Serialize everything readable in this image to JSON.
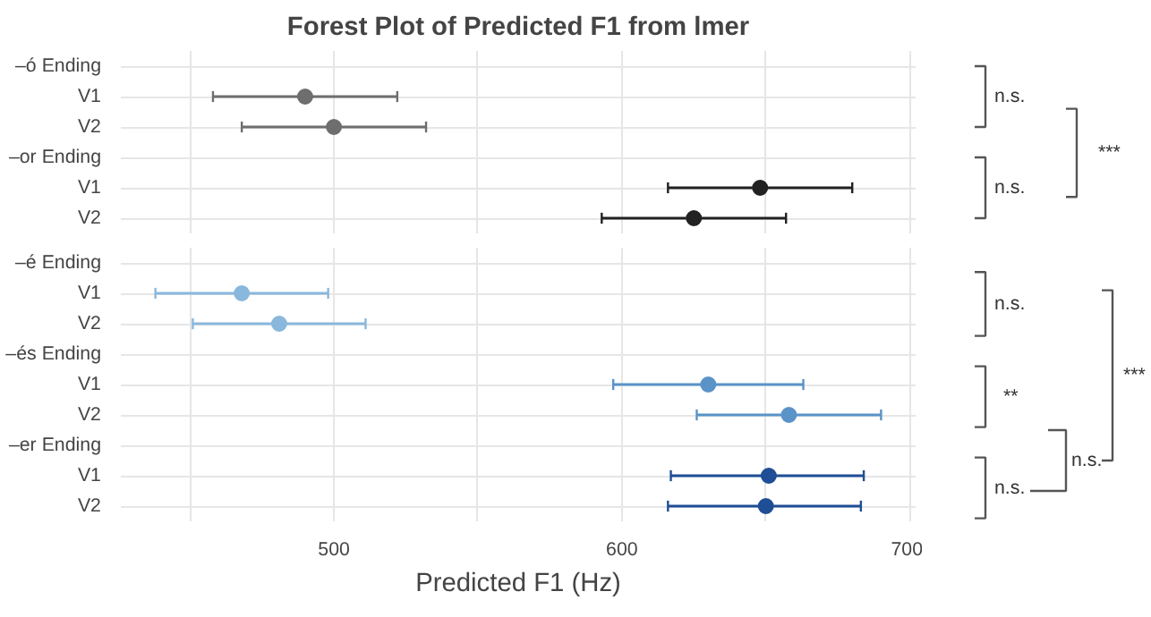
{
  "chart_data": [
    {
      "type": "scatter",
      "title": "Forest Plot of Predicted F1 from lmer",
      "orientation": "horizontal",
      "categories": [
        "–ó Ending",
        "V1",
        "V2",
        "–or Ending",
        "V1",
        "V2"
      ],
      "series": [
        {
          "color": "#6e6e6e",
          "values": [
            null,
            490,
            500,
            null,
            null,
            null
          ],
          "errors": [
            null,
            [
              458,
              522
            ],
            [
              468,
              532
            ],
            null,
            null,
            null
          ]
        },
        {
          "color": "#222222",
          "values": [
            null,
            null,
            null,
            null,
            648,
            625
          ],
          "errors": [
            null,
            null,
            null,
            null,
            [
              616,
              680
            ],
            [
              593,
              657
            ]
          ]
        }
      ],
      "xlim": [
        426,
        702
      ],
      "xticks": [
        {
          "value": 450,
          "label": null
        },
        500,
        {
          "value": 550,
          "label": null
        },
        600,
        {
          "value": 650,
          "label": null
        },
        700
      ],
      "tick_labels": "y",
      "grid": true,
      "marker": "circle",
      "annotations": [
        "n.s.",
        "n.s.",
        "***"
      ]
    },
    {
      "type": "scatter",
      "xlabel": "Predicted F1 (Hz)",
      "orientation": "horizontal",
      "categories": [
        "–é Ending",
        "V1",
        "V2",
        "–és Ending",
        "V1",
        "V2",
        "–er Ending",
        "V1",
        "V2"
      ],
      "series": [
        {
          "color": "#8ab8dc",
          "values": [
            null,
            468,
            481,
            null,
            null,
            null,
            null,
            null,
            null
          ],
          "errors": [
            null,
            [
              438,
              498
            ],
            [
              451,
              511
            ],
            null,
            null,
            null,
            null,
            null,
            null
          ]
        },
        {
          "color": "#5a93c8",
          "values": [
            null,
            null,
            null,
            null,
            630,
            658,
            null,
            null,
            null
          ],
          "errors": [
            null,
            null,
            null,
            null,
            [
              597,
              663
            ],
            [
              626,
              690
            ],
            null,
            null,
            null
          ]
        },
        {
          "color": "#1f4e96",
          "values": [
            null,
            null,
            null,
            null,
            null,
            null,
            null,
            651,
            650
          ],
          "errors": [
            null,
            null,
            null,
            null,
            null,
            null,
            null,
            [
              617,
              684
            ],
            [
              616,
              683
            ]
          ]
        }
      ],
      "xlim": [
        426,
        702
      ],
      "xticks": [
        {
          "value": 450,
          "label": null
        },
        500,
        {
          "value": 550,
          "label": null
        },
        600,
        {
          "value": 650,
          "label": null
        },
        700
      ],
      "grid": true,
      "marker": "circle",
      "annotations": [
        "n.s.",
        "**",
        "n.s.",
        "n.s.",
        "***"
      ]
    }
  ]
}
